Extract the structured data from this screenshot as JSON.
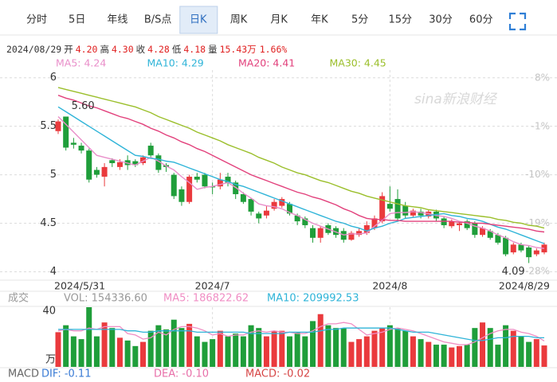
{
  "tabs": [
    "分时",
    "5日",
    "年线",
    "B/S点",
    "日K",
    "周K",
    "月K",
    "年K",
    "5分",
    "15分",
    "30分",
    "60分"
  ],
  "active_tab": 4,
  "quote": {
    "date": "2024/08/29",
    "items": [
      {
        "label": "开",
        "value": "4.20"
      },
      {
        "label": "高",
        "value": "4.30"
      },
      {
        "label": "收",
        "value": "4.28"
      },
      {
        "label": "低",
        "value": "4.18"
      },
      {
        "label": "量",
        "value": "15.43万"
      }
    ],
    "change": "1.66%"
  },
  "chart_data": [
    {
      "type": "candlestick",
      "watermark": "sina新浪财经",
      "high_label": "5.60",
      "low_label": "4.09",
      "grid": true,
      "up_color": "#ea3a3d",
      "down_color": "#1f9e3a",
      "categories": [
        "2024/5/31",
        null,
        null,
        null,
        null,
        null,
        null,
        null,
        null,
        null,
        null,
        null,
        null,
        null,
        null,
        null,
        null,
        null,
        null,
        null,
        "2024/7",
        null,
        null,
        null,
        null,
        null,
        null,
        null,
        null,
        null,
        null,
        null,
        null,
        null,
        null,
        null,
        null,
        null,
        null,
        null,
        null,
        null,
        null,
        "2024/8",
        null,
        null,
        null,
        null,
        null,
        null,
        null,
        null,
        null,
        null,
        null,
        null,
        null,
        null,
        null,
        null,
        null,
        null,
        null,
        "2024/8/29"
      ],
      "open": [
        5.45,
        5.6,
        5.33,
        5.3,
        5.25,
        5.05,
        4.98,
        5.15,
        5.08,
        5.15,
        5.14,
        5.12,
        5.3,
        5.2,
        5.1,
        5.0,
        4.85,
        4.72,
        4.98,
        5.0,
        4.88,
        4.88,
        4.98,
        4.92,
        4.8,
        4.75,
        4.6,
        4.58,
        4.65,
        4.68,
        4.7,
        4.58,
        4.55,
        4.45,
        4.35,
        4.48,
        4.45,
        4.42,
        4.33,
        4.38,
        4.4,
        4.45,
        4.52,
        4.7,
        4.75,
        4.68,
        4.58,
        4.62,
        4.57,
        4.62,
        4.55,
        4.47,
        4.48,
        4.52,
        4.5,
        4.38,
        4.42,
        4.38,
        4.35,
        4.2,
        4.28,
        4.25,
        4.18,
        4.2
      ],
      "high": [
        5.57,
        5.6,
        5.38,
        5.33,
        5.27,
        5.08,
        5.12,
        5.17,
        5.16,
        5.2,
        5.16,
        5.2,
        5.33,
        5.22,
        5.12,
        5.02,
        4.88,
        5.0,
        5.02,
        5.02,
        4.92,
        5.02,
        5.02,
        4.94,
        4.82,
        4.76,
        4.62,
        4.68,
        4.75,
        4.77,
        4.72,
        4.6,
        4.57,
        4.48,
        4.47,
        4.5,
        4.47,
        4.45,
        4.42,
        4.45,
        4.52,
        4.58,
        4.82,
        4.88,
        4.85,
        4.72,
        4.65,
        4.65,
        4.64,
        4.64,
        4.57,
        4.54,
        4.52,
        4.54,
        4.52,
        4.47,
        4.44,
        4.4,
        4.37,
        4.3,
        4.3,
        4.27,
        4.24,
        4.3
      ],
      "low": [
        5.42,
        5.25,
        5.27,
        5.22,
        4.92,
        4.97,
        4.88,
        5.08,
        5.05,
        5.05,
        5.08,
        5.1,
        5.17,
        5.02,
        5.03,
        4.75,
        4.68,
        4.7,
        4.92,
        4.86,
        4.8,
        4.85,
        4.88,
        4.75,
        4.7,
        4.58,
        4.5,
        4.55,
        4.63,
        4.66,
        4.58,
        4.48,
        4.45,
        4.3,
        4.3,
        4.38,
        4.35,
        4.3,
        4.32,
        4.36,
        4.38,
        4.43,
        4.5,
        4.62,
        4.53,
        4.55,
        4.56,
        4.55,
        4.55,
        4.52,
        4.45,
        4.45,
        4.42,
        4.43,
        4.35,
        4.36,
        4.33,
        4.28,
        4.16,
        4.18,
        4.2,
        4.09,
        4.16,
        4.18
      ],
      "close": [
        5.55,
        5.28,
        5.31,
        5.25,
        4.95,
        5.0,
        5.08,
        5.12,
        5.13,
        5.1,
        5.1,
        5.18,
        5.2,
        5.05,
        5.08,
        4.78,
        4.72,
        4.98,
        4.95,
        4.88,
        4.87,
        4.95,
        4.92,
        4.8,
        4.72,
        4.62,
        4.55,
        4.63,
        4.72,
        4.75,
        4.6,
        4.52,
        4.48,
        4.35,
        4.45,
        4.4,
        4.38,
        4.33,
        4.4,
        4.42,
        4.48,
        4.55,
        4.78,
        4.65,
        4.55,
        4.58,
        4.63,
        4.58,
        4.62,
        4.55,
        4.48,
        4.52,
        4.5,
        4.45,
        4.38,
        4.45,
        4.35,
        4.3,
        4.18,
        4.28,
        4.22,
        4.15,
        4.22,
        4.28
      ],
      "ylim": [
        3.93,
        6.08
      ],
      "yticks": [
        4,
        4.5,
        5,
        5.5,
        6
      ],
      "y2lim": [
        -29.3,
        9.5
      ],
      "y2ticks": [
        {
          "value": 8,
          "label": "8%"
        },
        {
          "value": -1,
          "label": "-1%"
        },
        {
          "value": -10,
          "label": "-10%"
        },
        {
          "value": -19,
          "label": "-19%"
        },
        {
          "value": -28,
          "label": "-28%"
        }
      ],
      "series": [
        {
          "name": "MA5: 4.24",
          "color": "#e98fca",
          "values": [
            5.6,
            5.52,
            5.44,
            5.36,
            5.28,
            5.2,
            5.18,
            5.16,
            5.14,
            5.12,
            5.1,
            5.14,
            5.18,
            5.14,
            5.09,
            5.05,
            4.98,
            4.92,
            4.85,
            4.87,
            4.88,
            4.9,
            4.92,
            4.87,
            4.81,
            4.76,
            4.7,
            4.68,
            4.67,
            4.65,
            4.61,
            4.58,
            4.54,
            4.5,
            4.47,
            4.44,
            4.41,
            4.38,
            4.39,
            4.39,
            4.4,
            4.47,
            4.53,
            4.6,
            4.61,
            4.61,
            4.62,
            4.61,
            4.6,
            4.58,
            4.57,
            4.55,
            4.52,
            4.5,
            4.47,
            4.45,
            4.42,
            4.38,
            4.35,
            4.31,
            4.28,
            4.27,
            4.25,
            4.24
          ]
        },
        {
          "name": "MA10: 4.29",
          "color": "#2fb4d8",
          "values": [
            5.7,
            5.65,
            5.6,
            5.55,
            5.5,
            5.45,
            5.4,
            5.35,
            5.3,
            5.25,
            5.2,
            5.19,
            5.17,
            5.16,
            5.14,
            5.13,
            5.1,
            5.07,
            5.04,
            5.01,
            4.98,
            4.95,
            4.93,
            4.9,
            4.88,
            4.85,
            4.82,
            4.79,
            4.76,
            4.73,
            4.7,
            4.67,
            4.64,
            4.61,
            4.58,
            4.55,
            4.52,
            4.5,
            4.47,
            4.45,
            4.42,
            4.45,
            4.47,
            4.5,
            4.52,
            4.55,
            4.56,
            4.57,
            4.58,
            4.59,
            4.6,
            4.58,
            4.57,
            4.55,
            4.54,
            4.52,
            4.49,
            4.46,
            4.44,
            4.41,
            4.38,
            4.35,
            4.32,
            4.29
          ]
        },
        {
          "name": "MA20: 4.41",
          "color": "#e2417c",
          "values": [
            5.82,
            5.79,
            5.77,
            5.74,
            5.71,
            5.69,
            5.66,
            5.63,
            5.6,
            5.58,
            5.55,
            5.52,
            5.48,
            5.45,
            5.41,
            5.38,
            5.34,
            5.31,
            5.27,
            5.24,
            5.2,
            5.16,
            5.12,
            5.08,
            5.04,
            5.0,
            4.97,
            4.94,
            4.91,
            4.88,
            4.85,
            4.82,
            4.8,
            4.77,
            4.75,
            4.72,
            4.69,
            4.65,
            4.62,
            4.58,
            4.55,
            4.54,
            4.54,
            4.53,
            4.53,
            4.52,
            4.52,
            4.52,
            4.52,
            4.52,
            4.52,
            4.52,
            4.51,
            4.51,
            4.5,
            4.5,
            4.49,
            4.48,
            4.47,
            4.46,
            4.45,
            4.44,
            4.42,
            4.41
          ]
        },
        {
          "name": "MA30: 4.45",
          "color": "#9bbf2b",
          "values": [
            5.9,
            5.88,
            5.86,
            5.84,
            5.82,
            5.8,
            5.78,
            5.76,
            5.74,
            5.72,
            5.7,
            5.67,
            5.64,
            5.6,
            5.57,
            5.54,
            5.51,
            5.48,
            5.44,
            5.41,
            5.38,
            5.35,
            5.31,
            5.28,
            5.25,
            5.22,
            5.18,
            5.15,
            5.12,
            5.08,
            5.05,
            5.02,
            5.0,
            4.97,
            4.94,
            4.92,
            4.89,
            4.86,
            4.83,
            4.81,
            4.78,
            4.76,
            4.74,
            4.72,
            4.7,
            4.68,
            4.67,
            4.66,
            4.64,
            4.63,
            4.62,
            4.61,
            4.6,
            4.59,
            4.58,
            4.57,
            4.56,
            4.54,
            4.53,
            4.51,
            4.5,
            4.48,
            4.47,
            4.45
          ]
        }
      ]
    },
    {
      "type": "bar",
      "title": "成交",
      "name": "VOL: 154336.60",
      "label_color": "#999999",
      "values": [
        25,
        30,
        22,
        20,
        43,
        22,
        32,
        28,
        21,
        19,
        15,
        18,
        26,
        30,
        27,
        34,
        28,
        31,
        22,
        18,
        20,
        26,
        22,
        24,
        22,
        30,
        28,
        22,
        26,
        26,
        22,
        25,
        22,
        33,
        38,
        30,
        28,
        28,
        18,
        20,
        22,
        26,
        28,
        30,
        28,
        26,
        22,
        20,
        18,
        16,
        16,
        14,
        15,
        16,
        28,
        32,
        28,
        16,
        30,
        26,
        22,
        18,
        20,
        15.43366
      ],
      "ylim": [
        0,
        43
      ],
      "yticks": [
        {
          "value": 0,
          "label": "万"
        },
        40
      ],
      "series": [
        {
          "name": "MA5: 186822.62",
          "color": "#f08ec4",
          "values": [
            26,
            27,
            26,
            26,
            28,
            27,
            29,
            29,
            29,
            24,
            23,
            20,
            21,
            25,
            23,
            27,
            29,
            29,
            28,
            26,
            23,
            24,
            22,
            23,
            23,
            25,
            26,
            25,
            26,
            25,
            25,
            24,
            24,
            26,
            29,
            31,
            31,
            32,
            31,
            27,
            23,
            24,
            25,
            27,
            28,
            27,
            26,
            24,
            22,
            20,
            18,
            17,
            16,
            16,
            18,
            21,
            24,
            26,
            27,
            27,
            25,
            24,
            22,
            18.68226
          ]
        },
        {
          "name": "MA10: 209992.53",
          "color": "#2fb4d8",
          "values": [
            27,
            27,
            27,
            27,
            27,
            27,
            27,
            27,
            27,
            26,
            26,
            25,
            25,
            26,
            26,
            26,
            26,
            26,
            25,
            25,
            25,
            25,
            25,
            25,
            25,
            24,
            24,
            24,
            24,
            24,
            25,
            25,
            25,
            25,
            26,
            27,
            27,
            28,
            28,
            28,
            28,
            28,
            28,
            28,
            27,
            26,
            25,
            25,
            25,
            24,
            23,
            22,
            21,
            20,
            19,
            19,
            20,
            21,
            21,
            22,
            22,
            22,
            21,
            20.99925
          ]
        }
      ]
    }
  ],
  "macd": {
    "title": "MACD",
    "items": [
      {
        "text": "DIF: -0.11",
        "color": "#3a7bd5"
      },
      {
        "text": "DEA: -0.10",
        "color": "#e86fa9"
      },
      {
        "text": "MACD: -0.02",
        "color": "#d64545"
      }
    ]
  }
}
